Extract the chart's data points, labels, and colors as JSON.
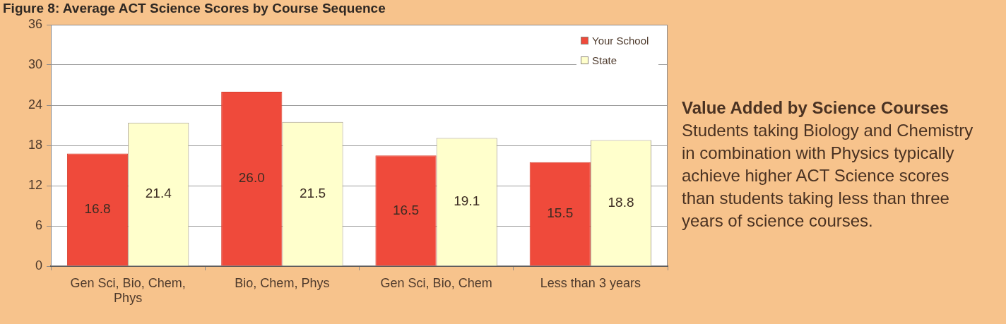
{
  "chart_data": {
    "type": "bar",
    "title": "Figure 8: Average ACT Science Scores by Course Sequence",
    "categories": [
      "Gen Sci, Bio, Chem, Phys",
      "Bio, Chem, Phys",
      "Gen Sci, Bio, Chem",
      "Less than 3 years"
    ],
    "series": [
      {
        "name": "Your School",
        "color": "#ef4a3b",
        "values": [
          16.8,
          26.0,
          16.5,
          15.5
        ],
        "value_labels": [
          "16.8",
          "26.0",
          "16.5",
          "15.5"
        ]
      },
      {
        "name": "State",
        "color": "#ffffcc",
        "values": [
          21.4,
          21.5,
          19.1,
          18.8
        ],
        "value_labels": [
          "21.4",
          "21.5",
          "19.1",
          "18.8"
        ]
      }
    ],
    "ylim": [
      0,
      36
    ],
    "yticks": [
      0,
      6,
      12,
      18,
      24,
      30,
      36
    ],
    "grid": "y",
    "legend": "top right",
    "annotations": [
      "Value Added by Science Courses",
      "Students taking Biology and Chemistry in combination with Physics typically achieve higher ACT Science scores than students taking less than three years of science courses."
    ]
  }
}
